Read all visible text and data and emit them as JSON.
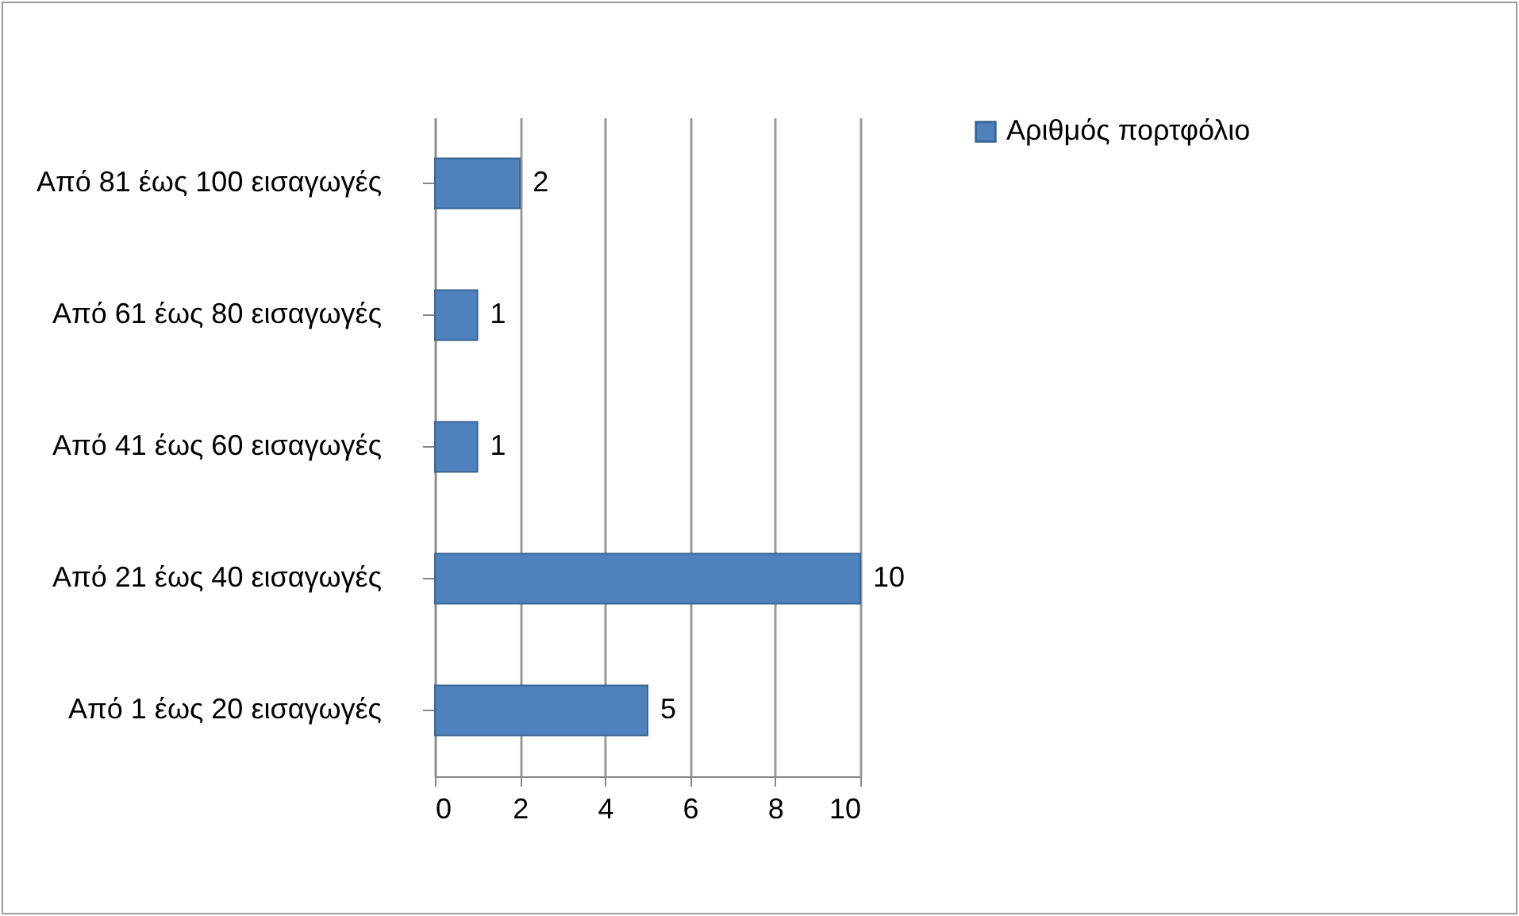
{
  "chart_data": {
    "type": "bar",
    "orientation": "horizontal",
    "categories": [
      "Από 81 έως 100 εισαγωγές",
      "Από 61 έως 80 εισαγωγές",
      "Από 41 έως 60 εισαγωγές",
      "Από 21 έως 40 εισαγωγές",
      "Από 1 έως 20 εισαγωγές"
    ],
    "series": [
      {
        "name": "Αριθμός πορτφόλιο",
        "color": "#4f81bd",
        "values": [
          2,
          1,
          1,
          10,
          5
        ]
      }
    ],
    "xlim": [
      0,
      10
    ],
    "xticks": [
      0,
      2,
      4,
      6,
      8,
      10
    ],
    "grid": "x",
    "legend": "right",
    "data_labels": true
  }
}
